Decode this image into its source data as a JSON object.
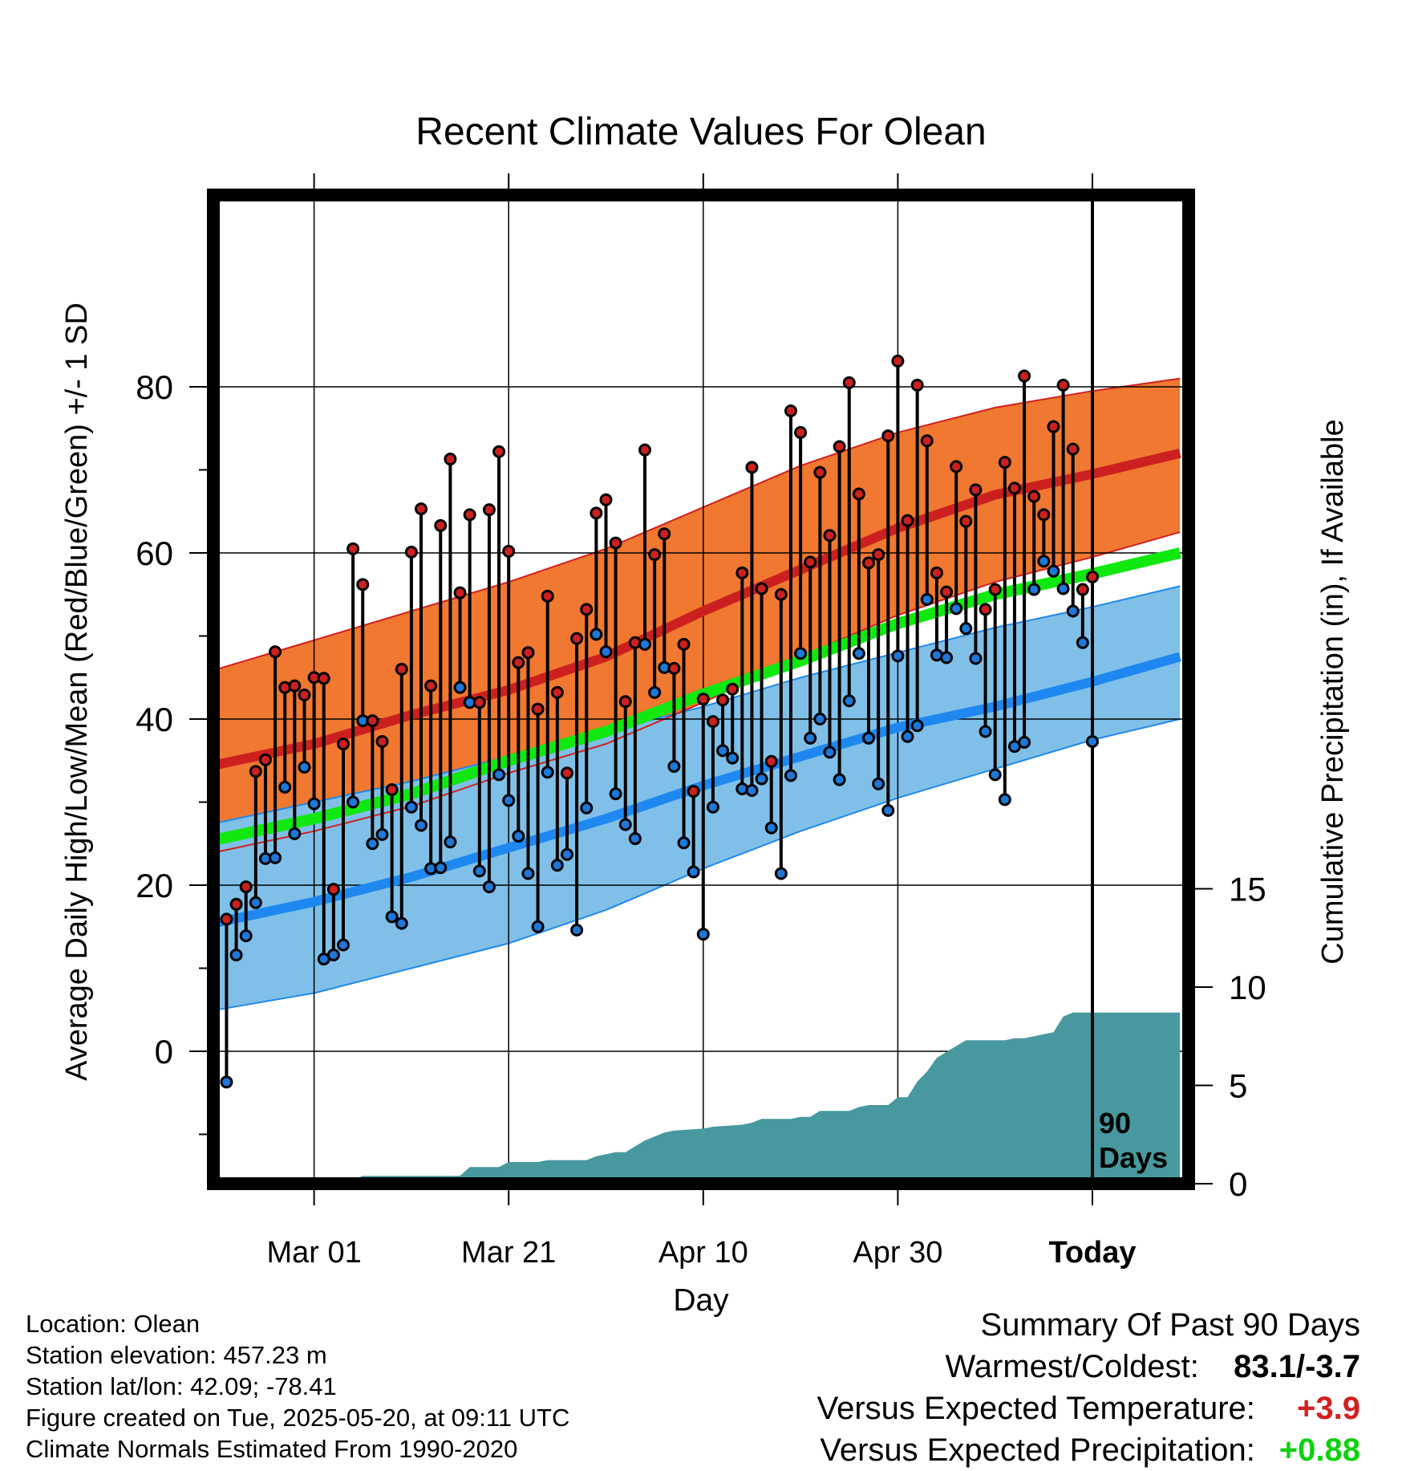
{
  "chart_data": {
    "type": "line",
    "title": "Recent Climate Values For Olean",
    "xlabel": "Day",
    "ylabel_left": "Average Daily High/Low/Mean (Red/Blue/Green) +/- 1 SD",
    "ylabel_right": "Cumulative Precipitation (in), If Available",
    "x_tick_labels": [
      "Mar 01",
      "Mar 21",
      "Apr 10",
      "Apr 30",
      "Today"
    ],
    "y_ticks_left": [
      "0",
      "20",
      "40",
      "60",
      "80"
    ],
    "y_ticks_right": [
      "0",
      "5",
      "10",
      "15"
    ],
    "ylim_left": [
      -13,
      88
    ],
    "ylim_right": [
      0,
      30
    ],
    "xlim_days": [
      -90,
      9
    ],
    "x_tick_days": [
      -80,
      -60,
      -40,
      -20,
      0
    ],
    "today_marker_label": [
      "90",
      "Days"
    ],
    "colors": {
      "high_band": "#f07830",
      "high_band_edge": "#d02020",
      "high_mean": "#cc2020",
      "low_band": "#80c0e8",
      "low_band_edge": "#2088e8",
      "low_mean": "#1e88f0",
      "mean": "#10e810",
      "precip": "#4898a0",
      "high_dot": "#cc2020",
      "low_dot": "#1e78d8"
    },
    "normals_days": [
      -90,
      -80,
      -70,
      -60,
      -50,
      -40,
      -30,
      -20,
      -10,
      0,
      9
    ],
    "normal_high_mean": [
      34.5,
      37.0,
      40.5,
      43.5,
      47.5,
      53.0,
      58.0,
      63.0,
      67.0,
      69.5,
      72.0
    ],
    "normal_high_upper": [
      46.0,
      49.5,
      53.0,
      56.5,
      60.5,
      65.5,
      70.5,
      74.5,
      77.5,
      79.5,
      81.0
    ],
    "normal_high_lower": [
      24.0,
      26.5,
      29.5,
      33.5,
      37.0,
      42.0,
      47.5,
      52.5,
      56.5,
      59.5,
      62.5
    ],
    "normal_mean": [
      25.5,
      28.0,
      31.0,
      35.0,
      38.5,
      43.0,
      47.0,
      51.5,
      55.0,
      57.5,
      60.0
    ],
    "normal_low_mean": [
      15.5,
      18.0,
      21.0,
      24.5,
      28.0,
      32.0,
      35.5,
      39.0,
      41.5,
      44.5,
      47.5
    ],
    "normal_low_upper": [
      27.5,
      30.0,
      32.5,
      35.5,
      38.5,
      41.5,
      45.0,
      48.0,
      51.0,
      53.5,
      56.0
    ],
    "normal_low_lower": [
      5.0,
      7.0,
      10.0,
      13.0,
      17.0,
      22.0,
      26.5,
      30.5,
      34.0,
      37.5,
      40.0
    ],
    "daily": [
      {
        "day": -89,
        "high": 15.9,
        "low": -3.7
      },
      {
        "day": -88,
        "high": 17.7,
        "low": 11.6
      },
      {
        "day": -87,
        "high": 19.8,
        "low": 13.9
      },
      {
        "day": -86,
        "high": 33.7,
        "low": 17.9
      },
      {
        "day": -85,
        "high": 35.1,
        "low": 23.2
      },
      {
        "day": -84,
        "high": 48.1,
        "low": 23.3
      },
      {
        "day": -83,
        "high": 43.8,
        "low": 31.8
      },
      {
        "day": -82,
        "high": 44.0,
        "low": 26.2
      },
      {
        "day": -81,
        "high": 42.9,
        "low": 34.2
      },
      {
        "day": -80,
        "high": 45.0,
        "low": 29.8
      },
      {
        "day": -79,
        "high": 44.9,
        "low": 11.1
      },
      {
        "day": -78,
        "high": 19.5,
        "low": 11.6
      },
      {
        "day": -77,
        "high": 37.0,
        "low": 12.8
      },
      {
        "day": -76,
        "high": 60.5,
        "low": 30.0
      },
      {
        "day": -75,
        "high": 56.2,
        "low": 39.8
      },
      {
        "day": -74,
        "high": 39.8,
        "low": 25.0
      },
      {
        "day": -73,
        "high": 37.3,
        "low": 26.1
      },
      {
        "day": -72,
        "high": 31.5,
        "low": 16.2
      },
      {
        "day": -71,
        "high": 46.0,
        "low": 15.4
      },
      {
        "day": -70,
        "high": 60.1,
        "low": 29.4
      },
      {
        "day": -69,
        "high": 65.3,
        "low": 27.2
      },
      {
        "day": -68,
        "high": 44.0,
        "low": 22.0
      },
      {
        "day": -67,
        "high": 63.3,
        "low": 22.1
      },
      {
        "day": -66,
        "high": 71.3,
        "low": 25.2
      },
      {
        "day": -65,
        "high": 55.2,
        "low": 43.8
      },
      {
        "day": -64,
        "high": 64.6,
        "low": 42.0
      },
      {
        "day": -63,
        "high": 42.0,
        "low": 21.7
      },
      {
        "day": -62,
        "high": 65.2,
        "low": 19.8
      },
      {
        "day": -61,
        "high": 72.2,
        "low": 33.3
      },
      {
        "day": -60,
        "high": 60.2,
        "low": 30.2
      },
      {
        "day": -59,
        "high": 46.8,
        "low": 25.9
      },
      {
        "day": -58,
        "high": 48.0,
        "low": 21.4
      },
      {
        "day": -57,
        "high": 41.2,
        "low": 15.0
      },
      {
        "day": -56,
        "high": 54.8,
        "low": 33.6
      },
      {
        "day": -55,
        "high": 43.2,
        "low": 22.4
      },
      {
        "day": -54,
        "high": 33.5,
        "low": 23.7
      },
      {
        "day": -53,
        "high": 49.7,
        "low": 14.6
      },
      {
        "day": -52,
        "high": 53.2,
        "low": 29.3
      },
      {
        "day": -51,
        "high": 64.8,
        "low": 50.2
      },
      {
        "day": -50,
        "high": 66.4,
        "low": 48.1
      },
      {
        "day": -49,
        "high": 61.2,
        "low": 31.0
      },
      {
        "day": -48,
        "high": 42.1,
        "low": 27.3
      },
      {
        "day": -47,
        "high": 49.2,
        "low": 25.6
      },
      {
        "day": -46,
        "high": 72.4,
        "low": 49.0
      },
      {
        "day": -45,
        "high": 59.8,
        "low": 43.2
      },
      {
        "day": -44,
        "high": 62.3,
        "low": 46.2
      },
      {
        "day": -43,
        "high": 46.1,
        "low": 34.3
      },
      {
        "day": -42,
        "high": 49.0,
        "low": 25.1
      },
      {
        "day": -41,
        "high": 31.3,
        "low": 21.6
      },
      {
        "day": -40,
        "high": 42.4,
        "low": 14.1
      },
      {
        "day": -39,
        "high": 39.7,
        "low": 29.4
      },
      {
        "day": -38,
        "high": 42.3,
        "low": 36.2
      },
      {
        "day": -37,
        "high": 43.6,
        "low": 35.3
      },
      {
        "day": -36,
        "high": 57.6,
        "low": 31.6
      },
      {
        "day": -35,
        "high": 70.3,
        "low": 31.4
      },
      {
        "day": -34,
        "high": 55.7,
        "low": 32.8
      },
      {
        "day": -33,
        "high": 34.9,
        "low": 26.9
      },
      {
        "day": -32,
        "high": 55.0,
        "low": 21.4
      },
      {
        "day": -31,
        "high": 77.1,
        "low": 33.2
      },
      {
        "day": -30,
        "high": 74.5,
        "low": 47.9
      },
      {
        "day": -29,
        "high": 58.9,
        "low": 37.7
      },
      {
        "day": -28,
        "high": 69.7,
        "low": 40.0
      },
      {
        "day": -27,
        "high": 62.1,
        "low": 36.0
      },
      {
        "day": -26,
        "high": 72.8,
        "low": 32.7
      },
      {
        "day": -25,
        "high": 80.5,
        "low": 42.2
      },
      {
        "day": -24,
        "high": 67.1,
        "low": 47.9
      },
      {
        "day": -23,
        "high": 58.8,
        "low": 37.7
      },
      {
        "day": -22,
        "high": 59.8,
        "low": 32.2
      },
      {
        "day": -21,
        "high": 74.1,
        "low": 29.0
      },
      {
        "day": -20,
        "high": 83.1,
        "low": 47.6
      },
      {
        "day": -19,
        "high": 63.9,
        "low": 37.9
      },
      {
        "day": -18,
        "high": 80.2,
        "low": 39.2
      },
      {
        "day": -17,
        "high": 73.5,
        "low": 54.4
      },
      {
        "day": -16,
        "high": 57.6,
        "low": 47.7
      },
      {
        "day": -15,
        "high": 55.3,
        "low": 47.4
      },
      {
        "day": -14,
        "high": 70.4,
        "low": 53.3
      },
      {
        "day": -13,
        "high": 63.8,
        "low": 50.9
      },
      {
        "day": -12,
        "high": 67.6,
        "low": 47.3
      },
      {
        "day": -11,
        "high": 53.2,
        "low": 38.5
      },
      {
        "day": -10,
        "high": 55.6,
        "low": 33.3
      },
      {
        "day": -9,
        "high": 70.9,
        "low": 30.3
      },
      {
        "day": -8,
        "high": 67.8,
        "low": 36.7
      },
      {
        "day": -7,
        "high": 81.3,
        "low": 37.2
      },
      {
        "day": -6,
        "high": 66.8,
        "low": 55.6
      },
      {
        "day": -5,
        "high": 64.6,
        "low": 59.0
      },
      {
        "day": -4,
        "high": 75.2,
        "low": 57.8
      },
      {
        "day": -3,
        "high": 80.2,
        "low": 55.7
      },
      {
        "day": -2,
        "high": 72.5,
        "low": 53.0
      },
      {
        "day": -1,
        "high": 55.6,
        "low": 49.2
      },
      {
        "day": 0,
        "high": 57.1,
        "low": 37.3
      }
    ],
    "precip_cumulative": [
      [
        -90,
        0.0
      ],
      [
        -77,
        0.05
      ],
      [
        -76,
        0.2
      ],
      [
        -75,
        0.4
      ],
      [
        -65,
        0.4
      ],
      [
        -64,
        0.85
      ],
      [
        -61,
        0.85
      ],
      [
        -60,
        1.1
      ],
      [
        -57,
        1.1
      ],
      [
        -56,
        1.2
      ],
      [
        -52,
        1.2
      ],
      [
        -51,
        1.4
      ],
      [
        -49,
        1.6
      ],
      [
        -48,
        1.6
      ],
      [
        -47,
        1.9
      ],
      [
        -46,
        2.2
      ],
      [
        -45,
        2.4
      ],
      [
        -44,
        2.6
      ],
      [
        -43,
        2.7
      ],
      [
        -40,
        2.8
      ],
      [
        -39,
        2.9
      ],
      [
        -36,
        3.0
      ],
      [
        -35,
        3.1
      ],
      [
        -34,
        3.3
      ],
      [
        -31,
        3.3
      ],
      [
        -30,
        3.4
      ],
      [
        -29,
        3.4
      ],
      [
        -28,
        3.7
      ],
      [
        -25,
        3.7
      ],
      [
        -24,
        3.9
      ],
      [
        -23,
        4.0
      ],
      [
        -21,
        4.0
      ],
      [
        -20,
        4.4
      ],
      [
        -19,
        4.4
      ],
      [
        -18,
        5.2
      ],
      [
        -17,
        5.7
      ],
      [
        -16,
        6.4
      ],
      [
        -15,
        6.7
      ],
      [
        -14,
        7.0
      ],
      [
        -13,
        7.3
      ],
      [
        -9,
        7.3
      ],
      [
        -8,
        7.4
      ],
      [
        -7,
        7.4
      ],
      [
        -6,
        7.5
      ],
      [
        -5,
        7.6
      ],
      [
        -4,
        7.7
      ],
      [
        -3,
        8.5
      ],
      [
        -2,
        8.7
      ],
      [
        0,
        8.7
      ],
      [
        9,
        8.7
      ]
    ]
  },
  "info": {
    "location": "Location: Olean",
    "elevation": "Station elevation: 457.23 m",
    "latlon": "Station lat/lon: 42.09; -78.41",
    "created": "Figure created on Tue, 2025-05-20, at 09:11 UTC",
    "normals": "Climate Normals Estimated From 1990-2020"
  },
  "summary": {
    "heading": "Summary Of Past 90 Days",
    "warm_cold_label": "Warmest/Coldest:",
    "warm_cold_value": "83.1/-3.7",
    "temp_label": "Versus Expected Temperature:",
    "temp_value": "+3.9",
    "precip_label": "Versus Expected Precipitation:",
    "precip_value": "+0.88",
    "temp_color": "#d42020",
    "precip_color": "#10d010"
  }
}
